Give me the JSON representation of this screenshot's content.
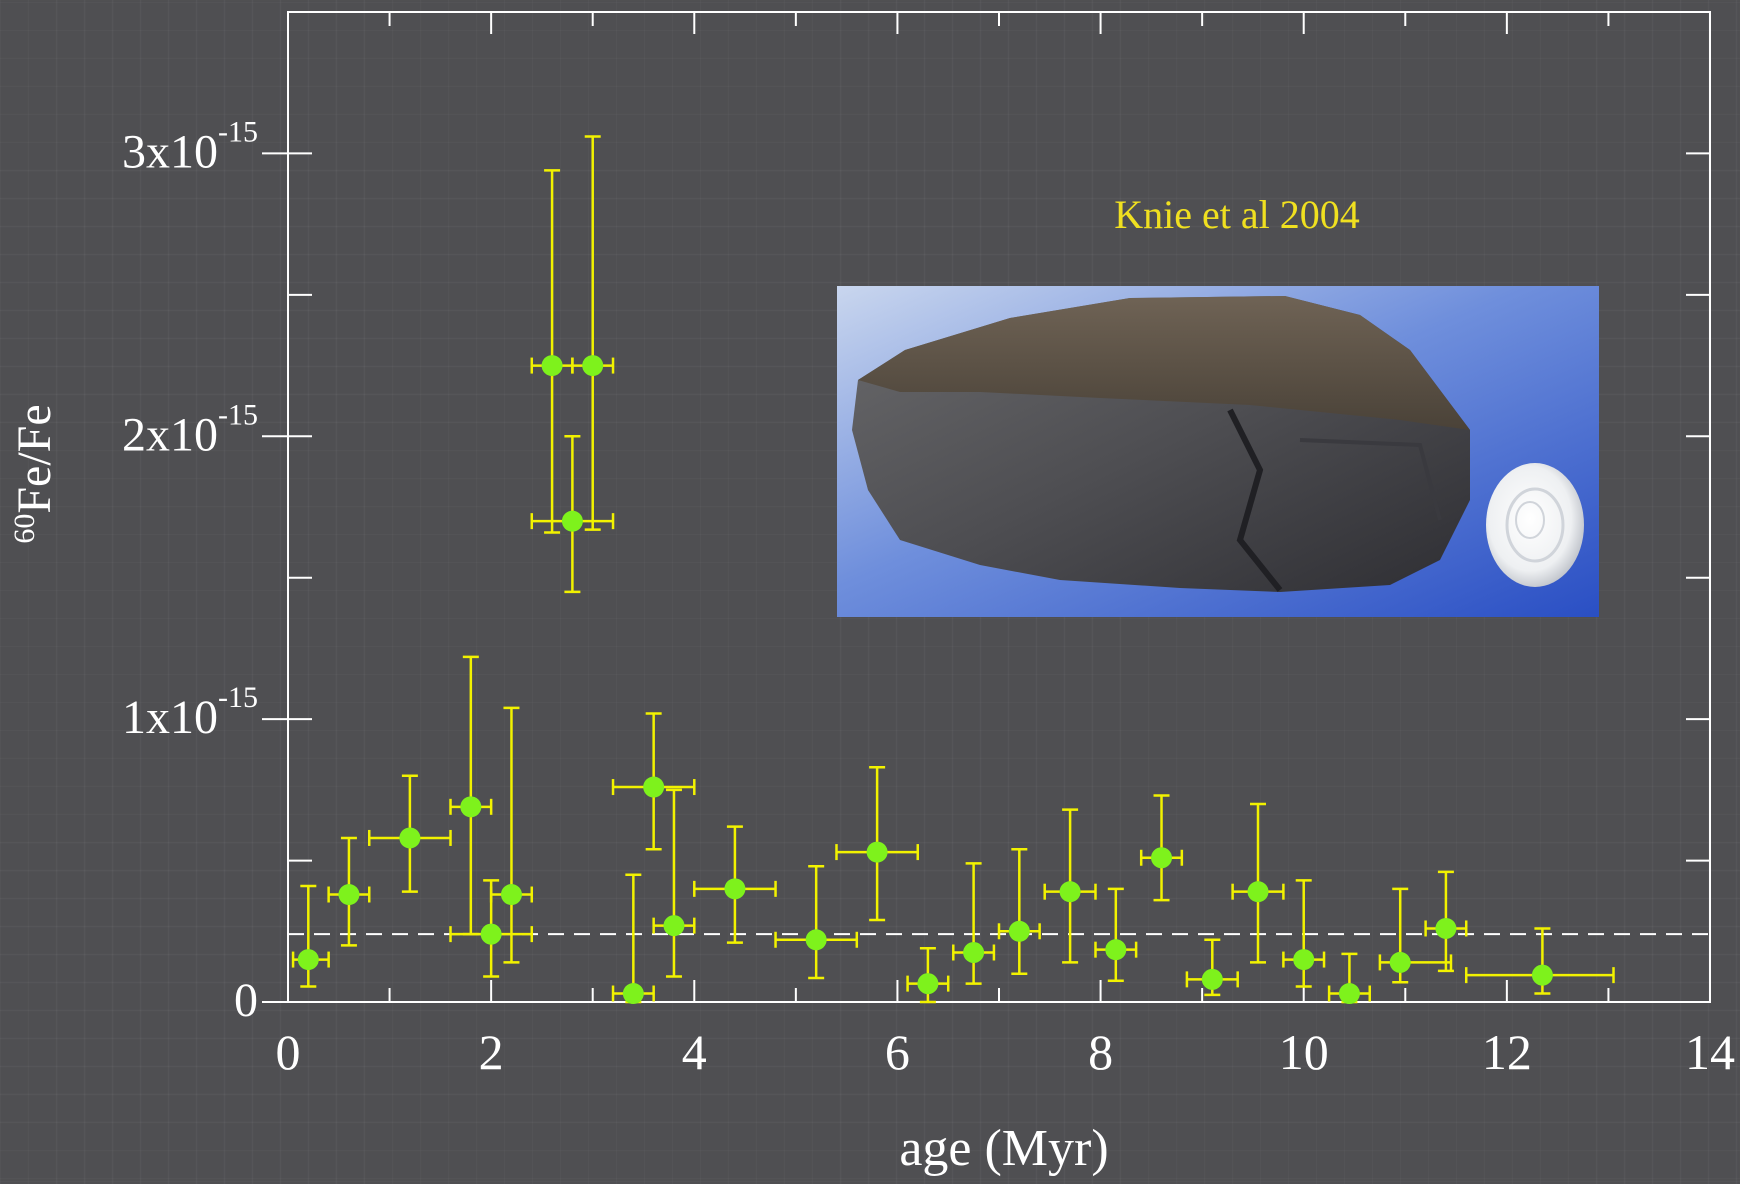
{
  "chart_data": {
    "type": "scatter",
    "title": "",
    "xlabel": "age (Myr)",
    "ylabel_super": "60",
    "ylabel_main": "Fe/Fe",
    "xlim": [
      0,
      14
    ],
    "ylim": [
      0,
      3.5e-15
    ],
    "x_ticks": [
      0,
      2,
      4,
      6,
      8,
      10,
      12,
      14
    ],
    "x_tick_labels": [
      "0",
      "2",
      "4",
      "6",
      "8",
      "10",
      "12",
      "14"
    ],
    "y_ticks": [
      0,
      1e-15,
      2e-15,
      3e-15
    ],
    "y_tick_labels": [
      {
        "base": "0",
        "exp": ""
      },
      {
        "base": "1x10",
        "exp": "-15"
      },
      {
        "base": "2x10",
        "exp": "-15"
      },
      {
        "base": "3x10",
        "exp": "-15"
      }
    ],
    "background_level": 2.4e-16,
    "annotation": "Knie et al 2004",
    "series": [
      {
        "points": [
          {
            "x": 0.2,
            "y": 1.5e-16,
            "xlo": 0.05,
            "xhi": 0.4,
            "ylo": 5.5e-17,
            "yhi": 4.1e-16
          },
          {
            "x": 0.6,
            "y": 3.8e-16,
            "xlo": 0.4,
            "xhi": 0.8,
            "ylo": 2e-16,
            "yhi": 5.8e-16
          },
          {
            "x": 1.2,
            "y": 5.8e-16,
            "xlo": 0.8,
            "xhi": 1.6,
            "ylo": 3.9e-16,
            "yhi": 8e-16
          },
          {
            "x": 1.8,
            "y": 6.9e-16,
            "xlo": 1.6,
            "xhi": 2.0,
            "ylo": 2.4e-16,
            "yhi": 1.22e-15
          },
          {
            "x": 2.0,
            "y": 2.4e-16,
            "xlo": 1.6,
            "xhi": 2.4,
            "ylo": 9e-17,
            "yhi": 4.3e-16
          },
          {
            "x": 2.2,
            "y": 3.8e-16,
            "xlo": 2.0,
            "xhi": 2.4,
            "ylo": 1.4e-16,
            "yhi": 1.04e-15
          },
          {
            "x": 2.6,
            "y": 2.25e-15,
            "xlo": 2.4,
            "xhi": 2.8,
            "ylo": 1.66e-15,
            "yhi": 2.94e-15
          },
          {
            "x": 2.8,
            "y": 1.7e-15,
            "xlo": 2.4,
            "xhi": 3.2,
            "ylo": 1.45e-15,
            "yhi": 2e-15
          },
          {
            "x": 3.0,
            "y": 2.25e-15,
            "xlo": 2.8,
            "xhi": 3.2,
            "ylo": 1.67e-15,
            "yhi": 3.06e-15
          },
          {
            "x": 3.4,
            "y": 3e-17,
            "xlo": 3.2,
            "xhi": 3.6,
            "ylo": 0.0,
            "yhi": 4.5e-16
          },
          {
            "x": 3.6,
            "y": 7.6e-16,
            "xlo": 3.2,
            "xhi": 4.0,
            "ylo": 5.4e-16,
            "yhi": 1.02e-15
          },
          {
            "x": 3.8,
            "y": 2.7e-16,
            "xlo": 3.6,
            "xhi": 4.0,
            "ylo": 9e-17,
            "yhi": 7.5e-16
          },
          {
            "x": 4.4,
            "y": 4e-16,
            "xlo": 4.0,
            "xhi": 4.8,
            "ylo": 2.1e-16,
            "yhi": 6.2e-16
          },
          {
            "x": 5.2,
            "y": 2.2e-16,
            "xlo": 4.8,
            "xhi": 5.6,
            "ylo": 8.5e-17,
            "yhi": 4.8e-16
          },
          {
            "x": 5.8,
            "y": 5.3e-16,
            "xlo": 5.4,
            "xhi": 6.2,
            "ylo": 2.9e-16,
            "yhi": 8.3e-16
          },
          {
            "x": 6.3,
            "y": 6.5e-17,
            "xlo": 6.1,
            "xhi": 6.5,
            "ylo": 0.0,
            "yhi": 1.9e-16
          },
          {
            "x": 6.75,
            "y": 1.75e-16,
            "xlo": 6.55,
            "xhi": 6.95,
            "ylo": 6.5e-17,
            "yhi": 4.9e-16
          },
          {
            "x": 7.2,
            "y": 2.5e-16,
            "xlo": 7.0,
            "xhi": 7.4,
            "ylo": 1e-16,
            "yhi": 5.4e-16
          },
          {
            "x": 7.7,
            "y": 3.9e-16,
            "xlo": 7.45,
            "xhi": 7.95,
            "ylo": 1.4e-16,
            "yhi": 6.8e-16
          },
          {
            "x": 8.15,
            "y": 1.85e-16,
            "xlo": 7.95,
            "xhi": 8.35,
            "ylo": 7.5e-17,
            "yhi": 4e-16
          },
          {
            "x": 8.6,
            "y": 5.1e-16,
            "xlo": 8.4,
            "xhi": 8.8,
            "ylo": 3.6e-16,
            "yhi": 7.3e-16
          },
          {
            "x": 9.1,
            "y": 8e-17,
            "xlo": 8.85,
            "xhi": 9.35,
            "ylo": 2.5e-17,
            "yhi": 2.2e-16
          },
          {
            "x": 9.55,
            "y": 3.9e-16,
            "xlo": 9.3,
            "xhi": 9.8,
            "ylo": 1.4e-16,
            "yhi": 7e-16
          },
          {
            "x": 10.0,
            "y": 1.5e-16,
            "xlo": 9.8,
            "xhi": 10.2,
            "ylo": 5.5e-17,
            "yhi": 4.3e-16
          },
          {
            "x": 10.45,
            "y": 3e-17,
            "xlo": 10.25,
            "xhi": 10.65,
            "ylo": 0.0,
            "yhi": 1.7e-16
          },
          {
            "x": 10.95,
            "y": 1.4e-16,
            "xlo": 10.75,
            "xhi": 11.45,
            "ylo": 7e-17,
            "yhi": 4e-16
          },
          {
            "x": 11.4,
            "y": 2.6e-16,
            "xlo": 11.2,
            "xhi": 11.6,
            "ylo": 1.1e-16,
            "yhi": 4.6e-16
          },
          {
            "x": 12.35,
            "y": 9.5e-17,
            "xlo": 11.6,
            "xhi": 13.05,
            "ylo": 3e-17,
            "yhi": 2.6e-16
          }
        ]
      }
    ],
    "grid": false,
    "colors": {
      "marker": "#7ef21c",
      "errorbar": "#f2f200",
      "axis": "#ffffff",
      "annotation": "#f0e020",
      "dashed_line": "#ffffff"
    }
  },
  "inset_image": {
    "icon": "meteorite-photo",
    "description_tags": [
      "rock-icon",
      "coin-icon"
    ]
  }
}
